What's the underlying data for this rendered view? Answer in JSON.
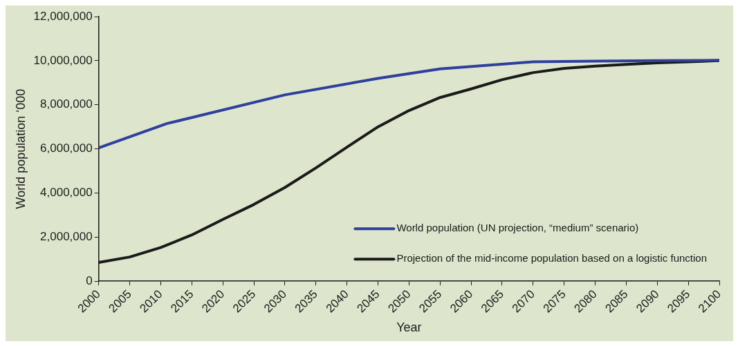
{
  "chart_data": {
    "type": "line",
    "xlabel": "Year",
    "ylabel": "World population ‘000",
    "xlim": [
      2000,
      2100
    ],
    "xticks": [
      2000,
      2005,
      2010,
      2015,
      2020,
      2025,
      2030,
      2035,
      2040,
      2045,
      2050,
      2055,
      2060,
      2065,
      2070,
      2075,
      2080,
      2085,
      2090,
      2095,
      2100
    ],
    "ylim": [
      0,
      12000000
    ],
    "yticks": [
      {
        "value": 0,
        "label": "0"
      },
      {
        "value": 2000000,
        "label": "2,000,000"
      },
      {
        "value": 4000000,
        "label": "4,000,000"
      },
      {
        "value": 6000000,
        "label": "6,000,000"
      },
      {
        "value": 8000000,
        "label": "8,000,000"
      },
      {
        "value": 10000000,
        "label": "10,000,000"
      },
      {
        "value": 12000000,
        "label": "12,000,000"
      }
    ],
    "grid": false,
    "legend": "bottom right",
    "marker": "none",
    "line_style": "solid",
    "series": [
      {
        "name": "World population (UN projection, “medium” scenario)",
        "color": "#2e3f9e",
        "x": [
          2000,
          2011,
          2030,
          2045,
          2055,
          2070,
          2080,
          2090,
          2100
        ],
        "values": [
          6050000,
          7150000,
          8450000,
          9200000,
          9630000,
          9950000,
          9980000,
          10000000,
          10020000
        ]
      },
      {
        "name": "Projection of the mid-income population based on a logistic function",
        "color": "#1a1a1a",
        "x": [
          2000,
          2005,
          2010,
          2015,
          2020,
          2025,
          2030,
          2035,
          2040,
          2045,
          2050,
          2055,
          2060,
          2065,
          2070,
          2075,
          2080,
          2085,
          2090,
          2095,
          2100
        ],
        "values": [
          850000,
          1100000,
          1530000,
          2100000,
          2800000,
          3480000,
          4250000,
          5140000,
          6080000,
          7000000,
          7740000,
          8330000,
          8720000,
          9140000,
          9460000,
          9650000,
          9750000,
          9830000,
          9900000,
          9950000,
          10000000
        ]
      }
    ]
  }
}
